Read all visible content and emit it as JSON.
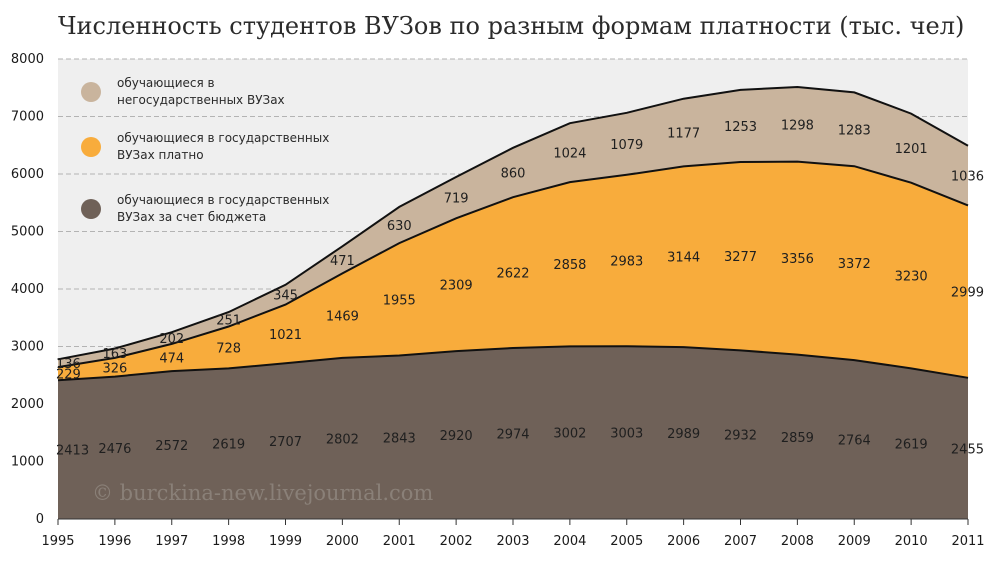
{
  "chart_data": {
    "type": "area",
    "stacked": true,
    "title": "Численность студентов ВУЗов по разным формам платности (тыс. чел)",
    "x": [
      1995,
      1996,
      1997,
      1998,
      1999,
      2000,
      2001,
      2002,
      2003,
      2004,
      2005,
      2006,
      2007,
      2008,
      2009,
      2010,
      2011
    ],
    "ylim": [
      0,
      8000
    ],
    "yticks": [
      0,
      1000,
      2000,
      3000,
      4000,
      5000,
      6000,
      7000,
      8000
    ],
    "grid": true,
    "legend_position": "top-left",
    "series": [
      {
        "name": "обучающиеся в государственных ВУЗах за счет бюджета",
        "color": "#6f6158",
        "values": [
          2413,
          2476,
          2572,
          2619,
          2707,
          2802,
          2843,
          2920,
          2974,
          3002,
          3003,
          2989,
          2932,
          2859,
          2764,
          2619,
          2455
        ]
      },
      {
        "name": "обучающиеся в государственных ВУЗах платно",
        "color": "#f8ac3c",
        "values": [
          229,
          326,
          474,
          728,
          1021,
          1469,
          1955,
          2309,
          2622,
          2858,
          2983,
          3144,
          3277,
          3356,
          3372,
          3230,
          2999
        ]
      },
      {
        "name": "обучающиеся в негосударственных ВУЗах",
        "color": "#c9b49d",
        "values": [
          136,
          163,
          202,
          251,
          345,
          471,
          630,
          719,
          860,
          1024,
          1079,
          1177,
          1253,
          1298,
          1283,
          1201,
          1036
        ]
      }
    ],
    "legend": [
      {
        "line1": "обучающиеся в",
        "line2": "негосударственных ВУЗах",
        "color": "#c9b49d"
      },
      {
        "line1": "обучающиеся в государственных",
        "line2": "ВУЗах платно",
        "color": "#f8ac3c"
      },
      {
        "line1": "обучающиеся в государственных",
        "line2": "ВУЗах за счет бюджета",
        "color": "#6f6158"
      }
    ],
    "watermark": "© burckina-new.livejournal.com"
  }
}
